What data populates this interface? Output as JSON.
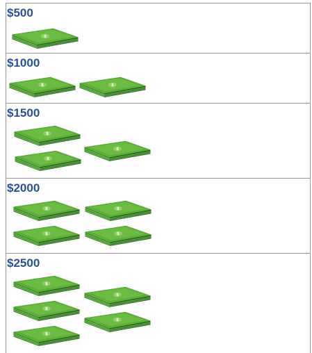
{
  "rows": [
    {
      "label": "$500"
    },
    {
      "label": "$1000"
    },
    {
      "label": "$1500"
    },
    {
      "label": "$2000"
    },
    {
      "label": "$2500"
    }
  ]
}
